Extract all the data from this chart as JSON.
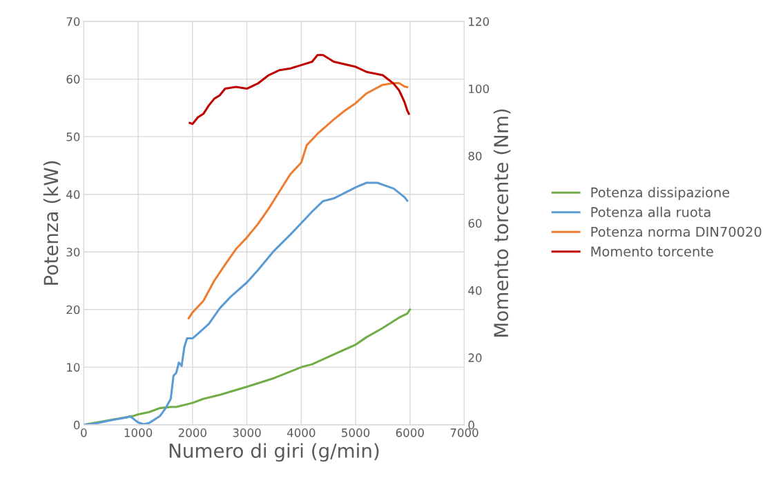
{
  "chart_data": {
    "type": "line",
    "xlabel": "Numero di giri (g/min)",
    "ylabel": "Potenza (kW)",
    "y2label": "Momento torcente (Nm)",
    "xlim": [
      0,
      7000
    ],
    "xticks": [
      0,
      1000,
      2000,
      3000,
      4000,
      5000,
      6000,
      7000
    ],
    "ylim": [
      0,
      70
    ],
    "yticks": [
      0,
      10,
      20,
      30,
      40,
      50,
      60,
      70
    ],
    "y2lim": [
      0,
      120
    ],
    "y2ticks": [
      0,
      20,
      40,
      60,
      80,
      100,
      120
    ],
    "grid": true,
    "legend": "right",
    "marker": "none",
    "line_style": "solid",
    "series": [
      {
        "name": "Potenza dissipazione",
        "color": "#70ad47",
        "x": [
          0,
          900,
          1000,
          1200,
          1400,
          1600,
          1700,
          2000,
          2200,
          2500,
          3000,
          3500,
          4000,
          4200,
          4500,
          5000,
          5200,
          5500,
          5800,
          5950,
          6000
        ],
        "values": [
          0,
          1.5,
          1.8,
          2.2,
          2.9,
          3.1,
          3.1,
          3.8,
          4.5,
          5.2,
          6.6,
          8.1,
          10.0,
          10.5,
          11.8,
          13.9,
          15.2,
          16.8,
          18.6,
          19.3,
          20
        ]
      },
      {
        "name": "Potenza alla ruota",
        "color": "#5b9bd5",
        "x": [
          0,
          200,
          500,
          800,
          850,
          1000,
          1100,
          1200,
          1400,
          1500,
          1600,
          1650,
          1700,
          1750,
          1800,
          1850,
          1900,
          2000,
          2100,
          2300,
          2500,
          2700,
          3000,
          3200,
          3500,
          3800,
          4000,
          4200,
          4400,
          4600,
          5000,
          5200,
          5400,
          5700,
          5900,
          5950
        ],
        "values": [
          0,
          0.2,
          0.8,
          1.3,
          1.5,
          0.4,
          0.1,
          0.3,
          1.5,
          2.8,
          4.5,
          8.5,
          9.0,
          10.8,
          10.2,
          13.5,
          15,
          15,
          15.8,
          17.5,
          20.2,
          22.2,
          24.7,
          26.8,
          30.2,
          33.0,
          35,
          37,
          38.8,
          39.3,
          41.2,
          42,
          42,
          41,
          39.5,
          38.9
        ]
      },
      {
        "name": "Potenza norma DIN70020",
        "color": "#ed7d31",
        "x": [
          1930,
          2000,
          2200,
          2400,
          2600,
          2800,
          3000,
          3200,
          3400,
          3600,
          3800,
          4000,
          4100,
          4300,
          4600,
          4800,
          5000,
          5200,
          5500,
          5700,
          5800,
          5900,
          5950
        ],
        "values": [
          18.5,
          19.5,
          21.5,
          25,
          27.8,
          30.5,
          32.5,
          34.8,
          37.5,
          40.5,
          43.5,
          45.5,
          48.5,
          50.5,
          53,
          54.5,
          55.8,
          57.5,
          59,
          59.3,
          59.3,
          58.7,
          58.6
        ]
      },
      {
        "name": "Momento torcente",
        "color": "#c00000",
        "axis": "y2",
        "x": [
          1950,
          2000,
          2100,
          2200,
          2300,
          2400,
          2500,
          2600,
          2800,
          3000,
          3200,
          3400,
          3600,
          3800,
          4000,
          4200,
          4300,
          4400,
          4600,
          5000,
          5200,
          5500,
          5700,
          5800,
          5900,
          5950,
          5980
        ],
        "values": [
          89.8,
          89.5,
          91.5,
          92.5,
          95,
          97,
          98,
          100,
          100.5,
          100,
          101.5,
          104,
          105.5,
          106,
          107,
          108,
          110,
          110,
          108,
          106.5,
          105,
          104,
          101.5,
          99.5,
          96,
          93.5,
          92.5
        ]
      }
    ]
  }
}
